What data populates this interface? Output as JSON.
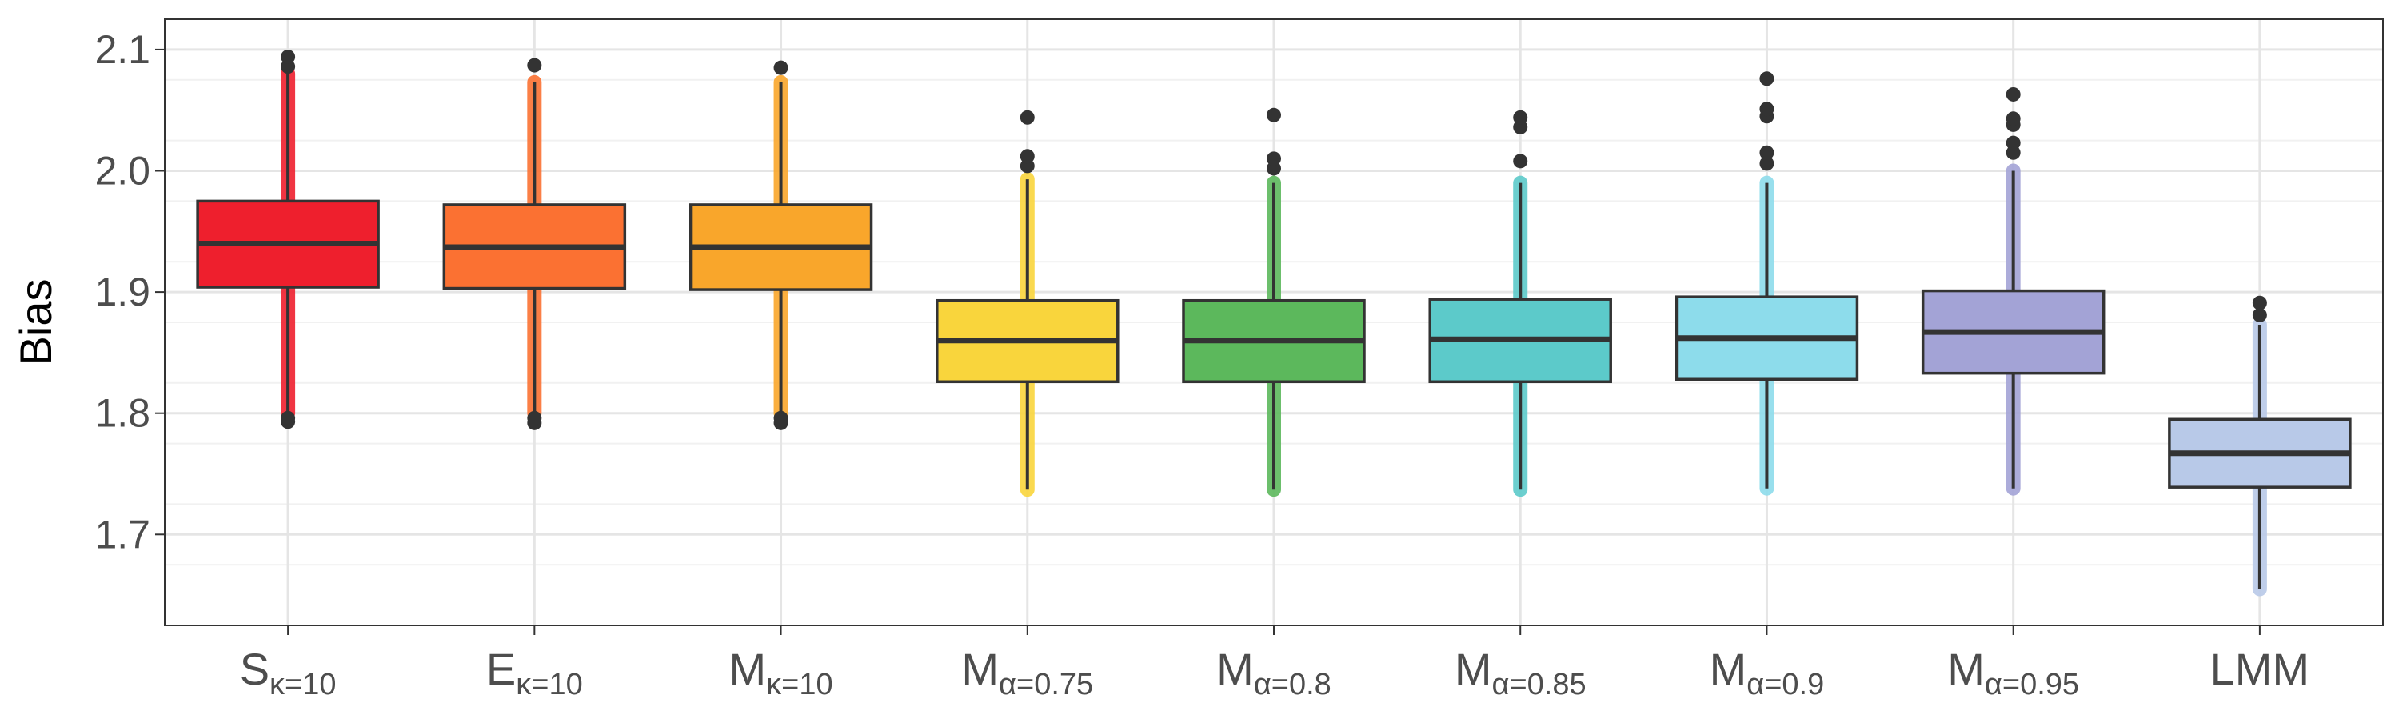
{
  "chart_data": {
    "type": "box",
    "xlabel": "",
    "ylabel": "Bias",
    "ylim": [
      1.625,
      2.125
    ],
    "y_ticks": [
      "1.7",
      "1.8",
      "1.9",
      "2.0",
      "2.1"
    ],
    "grid": true,
    "legend": "none",
    "categories": [
      {
        "base": "S",
        "sub": "κ=10"
      },
      {
        "base": "E",
        "sub": "κ=10"
      },
      {
        "base": "M",
        "sub": "κ=10"
      },
      {
        "base": "M",
        "sub": "α=0.75"
      },
      {
        "base": "M",
        "sub": "α=0.8"
      },
      {
        "base": "M",
        "sub": "α=0.85"
      },
      {
        "base": "M",
        "sub": "α=0.9"
      },
      {
        "base": "M",
        "sub": "α=0.95"
      },
      {
        "base": "LMM",
        "sub": ""
      }
    ],
    "boxes": [
      {
        "color": "#ee1f2d",
        "q1": 1.904,
        "median": 1.94,
        "q3": 1.975,
        "jitter_min": 1.8,
        "jitter_max": 2.08,
        "whisker_min": 1.8,
        "whisker_max": 2.08,
        "outliers": [
          1.793,
          1.796,
          2.086,
          2.094
        ]
      },
      {
        "color": "#fb7132",
        "q1": 1.903,
        "median": 1.937,
        "q3": 1.972,
        "jitter_min": 1.8,
        "jitter_max": 2.073,
        "whisker_min": 1.8,
        "whisker_max": 2.073,
        "outliers": [
          1.792,
          1.796,
          2.087
        ]
      },
      {
        "color": "#f9a62b",
        "q1": 1.902,
        "median": 1.937,
        "q3": 1.972,
        "jitter_min": 1.8,
        "jitter_max": 2.073,
        "whisker_min": 1.8,
        "whisker_max": 2.073,
        "outliers": [
          1.792,
          1.796,
          2.085
        ]
      },
      {
        "color": "#f9d53c",
        "q1": 1.826,
        "median": 1.86,
        "q3": 1.893,
        "jitter_min": 1.737,
        "jitter_max": 1.993,
        "whisker_min": 1.737,
        "whisker_max": 1.993,
        "outliers": [
          2.004,
          2.012,
          2.044
        ]
      },
      {
        "color": "#5cb85c",
        "q1": 1.826,
        "median": 1.86,
        "q3": 1.893,
        "jitter_min": 1.737,
        "jitter_max": 1.99,
        "whisker_min": 1.737,
        "whisker_max": 1.99,
        "outliers": [
          2.002,
          2.01,
          2.046
        ]
      },
      {
        "color": "#5ccaca",
        "q1": 1.826,
        "median": 1.861,
        "q3": 1.894,
        "jitter_min": 1.737,
        "jitter_max": 1.99,
        "whisker_min": 1.737,
        "whisker_max": 1.99,
        "outliers": [
          2.008,
          2.036,
          2.044
        ]
      },
      {
        "color": "#8ddceb",
        "q1": 1.828,
        "median": 1.862,
        "q3": 1.896,
        "jitter_min": 1.738,
        "jitter_max": 1.99,
        "whisker_min": 1.738,
        "whisker_max": 1.99,
        "outliers": [
          2.006,
          2.015,
          2.045,
          2.051,
          2.076
        ]
      },
      {
        "color": "#a3a3d6",
        "q1": 1.833,
        "median": 1.867,
        "q3": 1.901,
        "jitter_min": 1.738,
        "jitter_max": 2.0,
        "whisker_min": 1.738,
        "whisker_max": 2.0,
        "outliers": [
          2.015,
          2.023,
          2.038,
          2.043,
          2.063
        ]
      },
      {
        "color": "#b8c9e8",
        "q1": 1.739,
        "median": 1.767,
        "q3": 1.795,
        "jitter_min": 1.655,
        "jitter_max": 1.873,
        "whisker_min": 1.655,
        "whisker_max": 1.873,
        "outliers": [
          1.881,
          1.891
        ]
      }
    ]
  }
}
